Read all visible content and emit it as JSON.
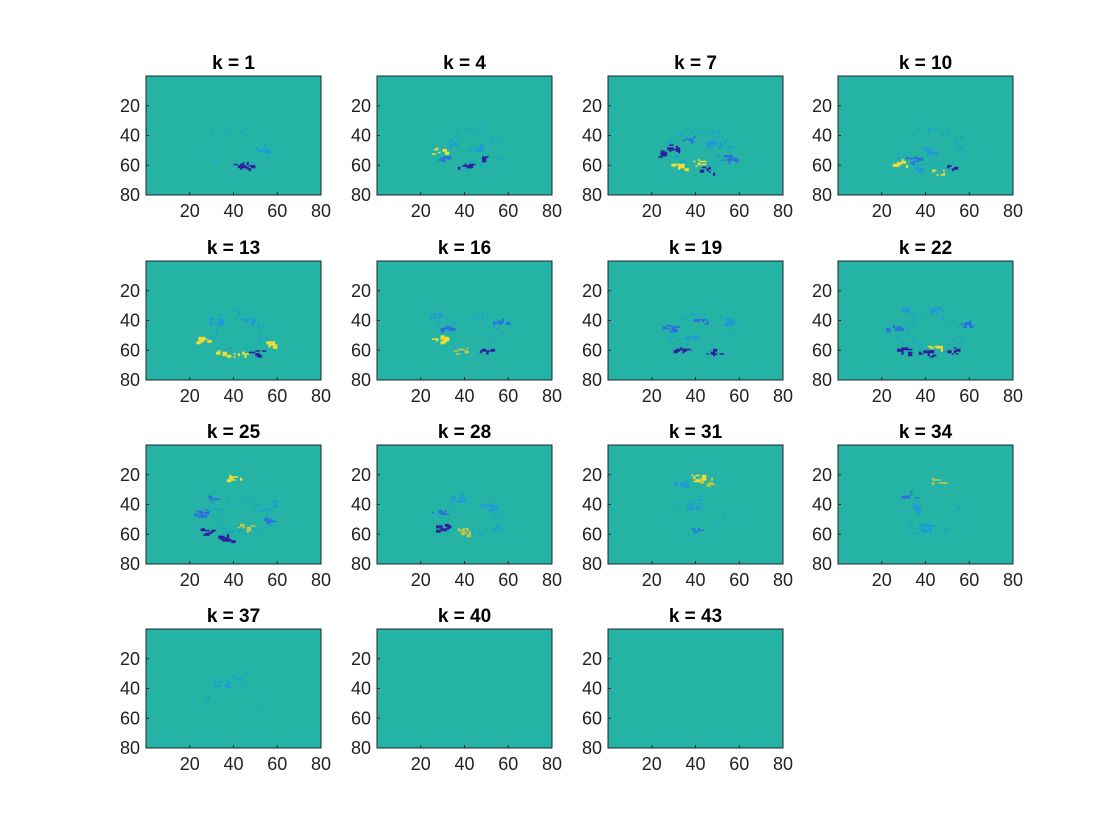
{
  "figure": {
    "colors": {
      "background": "#25B3A6",
      "frame": "#262626",
      "dark_blue": "#2E1FA0",
      "blue": "#2C6FE0",
      "light_blue": "#1F9AD8",
      "cyan": "#13A9C9",
      "yellow": "#F5DD30",
      "light_yellow": "#C8C642",
      "green": "#7CC35E"
    }
  },
  "chart_data": [
    {
      "type": "heatmap",
      "title": "k = 1",
      "xticks": [
        "20",
        "40",
        "60",
        "80"
      ],
      "yticks": [
        "20",
        "40",
        "60",
        "80"
      ],
      "xlim": [
        0,
        80
      ],
      "ylim": [
        80,
        0
      ],
      "activity": "sparse",
      "blobs": [
        {
          "x": 46,
          "y": 60,
          "color": "dark_blue"
        },
        {
          "x": 43,
          "y": 60,
          "color": "dark_blue"
        },
        {
          "x": 53,
          "y": 50,
          "color": "light_blue"
        }
      ]
    },
    {
      "type": "heatmap",
      "title": "k = 4",
      "xticks": [
        "20",
        "40",
        "60",
        "80"
      ],
      "yticks": [
        "20",
        "40",
        "60",
        "80"
      ],
      "xlim": [
        0,
        80
      ],
      "ylim": [
        80,
        0
      ],
      "activity": "moderate",
      "blobs": [
        {
          "x": 30,
          "y": 55,
          "color": "blue"
        },
        {
          "x": 40,
          "y": 60,
          "color": "dark_blue"
        },
        {
          "x": 50,
          "y": 55,
          "color": "dark_blue"
        },
        {
          "x": 28,
          "y": 50,
          "color": "yellow"
        },
        {
          "x": 44,
          "y": 48,
          "color": "light_blue"
        },
        {
          "x": 35,
          "y": 45,
          "color": "light_blue"
        }
      ]
    },
    {
      "type": "heatmap",
      "title": "k = 7",
      "xticks": [
        "20",
        "40",
        "60",
        "80"
      ],
      "yticks": [
        "20",
        "40",
        "60",
        "80"
      ],
      "xlim": [
        0,
        80
      ],
      "ylim": [
        80,
        0
      ],
      "activity": "strong",
      "blobs": [
        {
          "x": 26,
          "y": 52,
          "color": "dark_blue"
        },
        {
          "x": 32,
          "y": 60,
          "color": "yellow"
        },
        {
          "x": 45,
          "y": 63,
          "color": "dark_blue"
        },
        {
          "x": 40,
          "y": 58,
          "color": "yellow"
        },
        {
          "x": 55,
          "y": 55,
          "color": "blue"
        },
        {
          "x": 36,
          "y": 42,
          "color": "blue"
        },
        {
          "x": 48,
          "y": 45,
          "color": "light_blue"
        },
        {
          "x": 30,
          "y": 48,
          "color": "dark_blue"
        }
      ]
    },
    {
      "type": "heatmap",
      "title": "k = 10",
      "xticks": [
        "20",
        "40",
        "60",
        "80"
      ],
      "yticks": [
        "20",
        "40",
        "60",
        "80"
      ],
      "xlim": [
        0,
        80
      ],
      "ylim": [
        80,
        0
      ],
      "activity": "moderate",
      "blobs": [
        {
          "x": 28,
          "y": 58,
          "color": "yellow"
        },
        {
          "x": 38,
          "y": 62,
          "color": "light_blue"
        },
        {
          "x": 46,
          "y": 64,
          "color": "yellow"
        },
        {
          "x": 52,
          "y": 62,
          "color": "dark_blue"
        },
        {
          "x": 34,
          "y": 56,
          "color": "blue"
        },
        {
          "x": 42,
          "y": 50,
          "color": "light_blue"
        }
      ]
    },
    {
      "type": "heatmap",
      "title": "k = 13",
      "xticks": [
        "20",
        "40",
        "60",
        "80"
      ],
      "yticks": [
        "20",
        "40",
        "60",
        "80"
      ],
      "xlim": [
        0,
        80
      ],
      "ylim": [
        80,
        0
      ],
      "activity": "moderate",
      "blobs": [
        {
          "x": 26,
          "y": 52,
          "color": "yellow"
        },
        {
          "x": 35,
          "y": 62,
          "color": "yellow"
        },
        {
          "x": 42,
          "y": 63,
          "color": "yellow"
        },
        {
          "x": 50,
          "y": 62,
          "color": "dark_blue"
        },
        {
          "x": 58,
          "y": 55,
          "color": "yellow"
        },
        {
          "x": 32,
          "y": 40,
          "color": "light_blue"
        },
        {
          "x": 48,
          "y": 40,
          "color": "light_blue"
        }
      ]
    },
    {
      "type": "heatmap",
      "title": "k = 16",
      "xticks": [
        "20",
        "40",
        "60",
        "80"
      ],
      "yticks": [
        "20",
        "40",
        "60",
        "80"
      ],
      "xlim": [
        0,
        80
      ],
      "ylim": [
        80,
        0
      ],
      "activity": "moderate",
      "blobs": [
        {
          "x": 28,
          "y": 52,
          "color": "yellow"
        },
        {
          "x": 38,
          "y": 60,
          "color": "light_yellow"
        },
        {
          "x": 50,
          "y": 60,
          "color": "dark_blue"
        },
        {
          "x": 32,
          "y": 45,
          "color": "blue"
        },
        {
          "x": 56,
          "y": 40,
          "color": "blue"
        },
        {
          "x": 26,
          "y": 36,
          "color": "light_blue"
        }
      ]
    },
    {
      "type": "heatmap",
      "title": "k = 19",
      "xticks": [
        "20",
        "40",
        "60",
        "80"
      ],
      "yticks": [
        "20",
        "40",
        "60",
        "80"
      ],
      "xlim": [
        0,
        80
      ],
      "ylim": [
        80,
        0
      ],
      "activity": "moderate",
      "blobs": [
        {
          "x": 33,
          "y": 60,
          "color": "dark_blue"
        },
        {
          "x": 48,
          "y": 60,
          "color": "dark_blue"
        },
        {
          "x": 28,
          "y": 45,
          "color": "blue"
        },
        {
          "x": 42,
          "y": 40,
          "color": "blue"
        },
        {
          "x": 55,
          "y": 40,
          "color": "light_blue"
        },
        {
          "x": 38,
          "y": 52,
          "color": "light_blue"
        }
      ]
    },
    {
      "type": "heatmap",
      "title": "k = 22",
      "xticks": [
        "20",
        "40",
        "60",
        "80"
      ],
      "yticks": [
        "20",
        "40",
        "60",
        "80"
      ],
      "xlim": [
        0,
        80
      ],
      "ylim": [
        80,
        0
      ],
      "activity": "strong",
      "blobs": [
        {
          "x": 30,
          "y": 60,
          "color": "dark_blue"
        },
        {
          "x": 40,
          "y": 62,
          "color": "dark_blue"
        },
        {
          "x": 52,
          "y": 60,
          "color": "dark_blue"
        },
        {
          "x": 25,
          "y": 45,
          "color": "blue"
        },
        {
          "x": 57,
          "y": 42,
          "color": "blue"
        },
        {
          "x": 30,
          "y": 32,
          "color": "light_blue"
        },
        {
          "x": 45,
          "y": 32,
          "color": "light_blue"
        },
        {
          "x": 44,
          "y": 58,
          "color": "yellow"
        }
      ]
    },
    {
      "type": "heatmap",
      "title": "k = 25",
      "xticks": [
        "20",
        "40",
        "60",
        "80"
      ],
      "yticks": [
        "20",
        "40",
        "60",
        "80"
      ],
      "xlim": [
        0,
        80
      ],
      "ylim": [
        80,
        0
      ],
      "activity": "strong",
      "blobs": [
        {
          "x": 28,
          "y": 58,
          "color": "dark_blue"
        },
        {
          "x": 36,
          "y": 62,
          "color": "dark_blue"
        },
        {
          "x": 25,
          "y": 45,
          "color": "blue"
        },
        {
          "x": 30,
          "y": 35,
          "color": "blue"
        },
        {
          "x": 55,
          "y": 50,
          "color": "blue"
        },
        {
          "x": 58,
          "y": 38,
          "color": "light_blue"
        },
        {
          "x": 45,
          "y": 55,
          "color": "light_yellow"
        },
        {
          "x": 40,
          "y": 22,
          "color": "yellow"
        }
      ]
    },
    {
      "type": "heatmap",
      "title": "k = 28",
      "xticks": [
        "20",
        "40",
        "60",
        "80"
      ],
      "yticks": [
        "20",
        "40",
        "60",
        "80"
      ],
      "xlim": [
        0,
        80
      ],
      "ylim": [
        80,
        0
      ],
      "activity": "moderate",
      "blobs": [
        {
          "x": 30,
          "y": 55,
          "color": "dark_blue"
        },
        {
          "x": 40,
          "y": 58,
          "color": "light_yellow"
        },
        {
          "x": 28,
          "y": 45,
          "color": "blue"
        },
        {
          "x": 50,
          "y": 42,
          "color": "light_blue"
        },
        {
          "x": 36,
          "y": 35,
          "color": "light_blue"
        },
        {
          "x": 54,
          "y": 55,
          "color": "light_blue"
        }
      ]
    },
    {
      "type": "heatmap",
      "title": "k = 31",
      "xticks": [
        "20",
        "40",
        "60",
        "80"
      ],
      "yticks": [
        "20",
        "40",
        "60",
        "80"
      ],
      "xlim": [
        0,
        80
      ],
      "ylim": [
        80,
        0
      ],
      "activity": "sparse",
      "blobs": [
        {
          "x": 40,
          "y": 22,
          "color": "yellow"
        },
        {
          "x": 44,
          "y": 24,
          "color": "light_yellow"
        },
        {
          "x": 33,
          "y": 26,
          "color": "light_blue"
        },
        {
          "x": 38,
          "y": 40,
          "color": "light_blue"
        },
        {
          "x": 40,
          "y": 58,
          "color": "blue"
        }
      ]
    },
    {
      "type": "heatmap",
      "title": "k = 34",
      "xticks": [
        "20",
        "40",
        "60",
        "80"
      ],
      "yticks": [
        "20",
        "40",
        "60",
        "80"
      ],
      "xlim": [
        0,
        80
      ],
      "ylim": [
        80,
        0
      ],
      "activity": "sparse",
      "blobs": [
        {
          "x": 32,
          "y": 33,
          "color": "blue"
        },
        {
          "x": 35,
          "y": 42,
          "color": "light_blue"
        },
        {
          "x": 45,
          "y": 24,
          "color": "light_yellow"
        },
        {
          "x": 40,
          "y": 55,
          "color": "light_blue"
        }
      ]
    },
    {
      "type": "heatmap",
      "title": "k = 37",
      "xticks": [
        "20",
        "40",
        "60",
        "80"
      ],
      "yticks": [
        "20",
        "40",
        "60",
        "80"
      ],
      "xlim": [
        0,
        80
      ],
      "ylim": [
        80,
        0
      ],
      "activity": "faint",
      "blobs": [
        {
          "x": 34,
          "y": 36,
          "color": "light_blue"
        },
        {
          "x": 42,
          "y": 32,
          "color": "cyan"
        }
      ]
    },
    {
      "type": "heatmap",
      "title": "k = 40",
      "xticks": [
        "20",
        "40",
        "60",
        "80"
      ],
      "yticks": [
        "20",
        "40",
        "60",
        "80"
      ],
      "xlim": [
        0,
        80
      ],
      "ylim": [
        80,
        0
      ],
      "activity": "none",
      "blobs": []
    },
    {
      "type": "heatmap",
      "title": "k = 43",
      "xticks": [
        "20",
        "40",
        "60",
        "80"
      ],
      "yticks": [
        "20",
        "40",
        "60",
        "80"
      ],
      "xlim": [
        0,
        80
      ],
      "ylim": [
        80,
        0
      ],
      "activity": "none",
      "blobs": []
    }
  ]
}
